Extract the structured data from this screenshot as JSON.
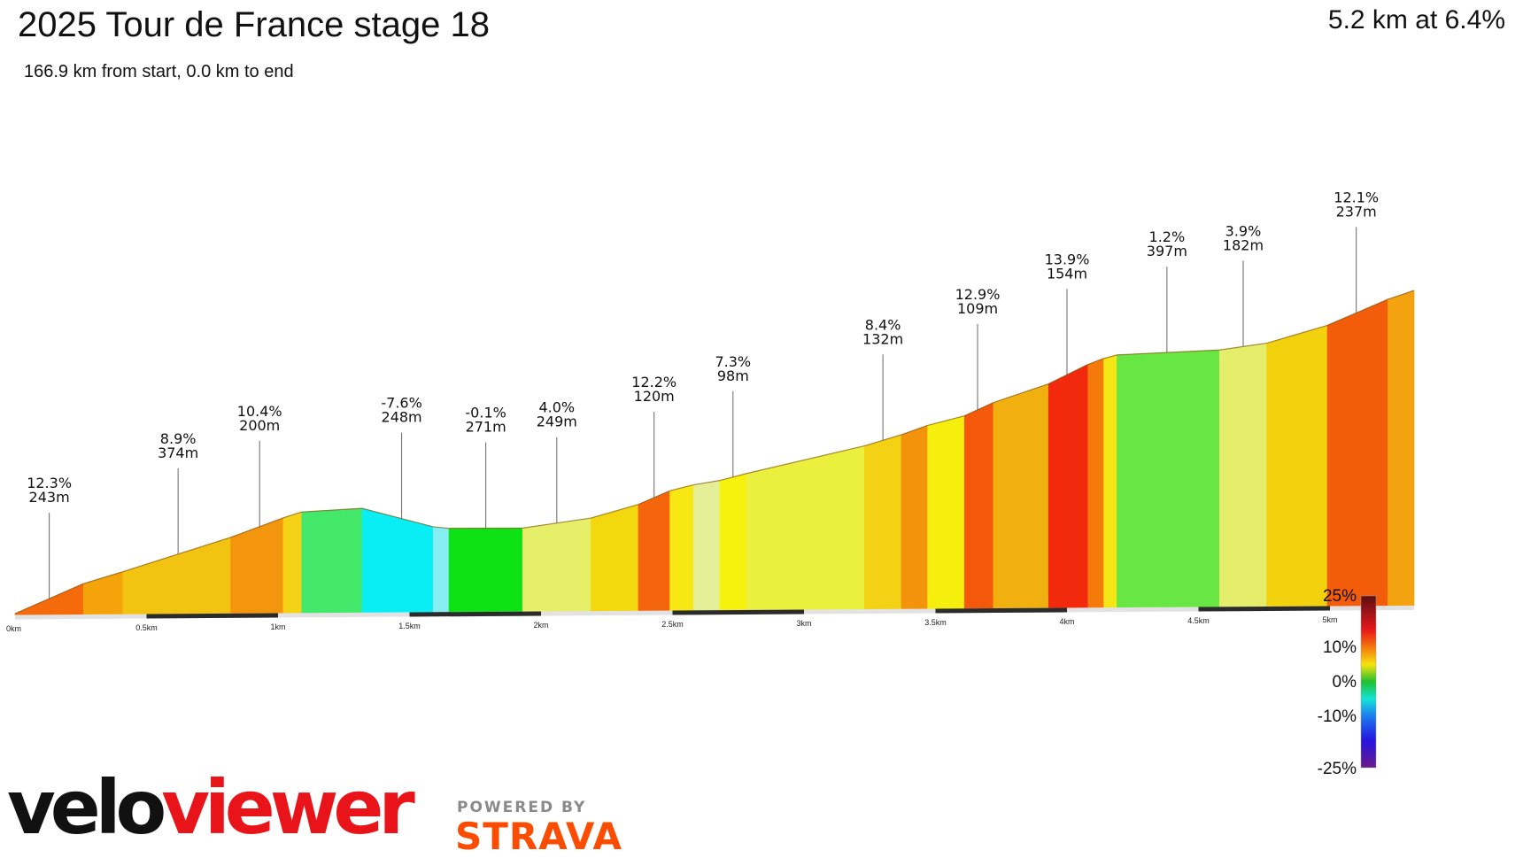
{
  "header": {
    "title": "2025 Tour de France stage 18",
    "subtitle": "166.9 km from start, 0.0 km to end",
    "summary": "5.2 km at 6.4%"
  },
  "branding": {
    "logo_part1": "velo",
    "logo_part2": "viewer",
    "powered_by": "POWERED BY",
    "partner": "STRAVA"
  },
  "chart_data": {
    "type": "area",
    "title": "2025 Tour de France stage 18",
    "xlabel": "",
    "ylabel": "",
    "x_unit": "km",
    "xlim": [
      0,
      5.2
    ],
    "x_ticks": [
      "0km",
      "0.5km",
      "1km",
      "1.5km",
      "2km",
      "2.5km",
      "3km",
      "3.5km",
      "4km",
      "4.5km",
      "5km"
    ],
    "grid": false,
    "segments": [
      {
        "from": 0.0,
        "to": 0.26,
        "gradient": 12.3,
        "length_label": "243m",
        "color": "#f56a0a"
      },
      {
        "from": 0.26,
        "to": 0.41,
        "gradient": 8.5,
        "length_label": "",
        "color": "#f4a30b"
      },
      {
        "from": 0.41,
        "to": 0.82,
        "gradient": 8.9,
        "length_label": "374m",
        "color": "#f2c311"
      },
      {
        "from": 0.82,
        "to": 1.02,
        "gradient": 10.4,
        "length_label": "200m",
        "color": "#f4960d"
      },
      {
        "from": 1.02,
        "to": 1.09,
        "gradient": 9.0,
        "length_label": "",
        "color": "#f4d316"
      },
      {
        "from": 1.09,
        "to": 1.32,
        "gradient": 1.5,
        "length_label": "",
        "color": "#44e86a"
      },
      {
        "from": 1.32,
        "to": 1.59,
        "gradient": -7.6,
        "length_label": "248m",
        "color": "#08eef4"
      },
      {
        "from": 1.59,
        "to": 1.65,
        "gradient": -3.0,
        "length_label": "",
        "color": "#86eef2"
      },
      {
        "from": 1.65,
        "to": 1.93,
        "gradient": -0.1,
        "length_label": "271m",
        "color": "#0de214"
      },
      {
        "from": 1.93,
        "to": 2.19,
        "gradient": 4.0,
        "length_label": "249m",
        "color": "#e6ef6a"
      },
      {
        "from": 2.19,
        "to": 2.37,
        "gradient": 8.0,
        "length_label": "",
        "color": "#f3d80f"
      },
      {
        "from": 2.37,
        "to": 2.49,
        "gradient": 12.2,
        "length_label": "120m",
        "color": "#f5650c"
      },
      {
        "from": 2.49,
        "to": 2.58,
        "gradient": 7.0,
        "length_label": "",
        "color": "#f7e712"
      },
      {
        "from": 2.58,
        "to": 2.68,
        "gradient": 4.5,
        "length_label": "",
        "color": "#e4ee96"
      },
      {
        "from": 2.68,
        "to": 2.78,
        "gradient": 7.3,
        "length_label": "98m",
        "color": "#f6f20b"
      },
      {
        "from": 2.78,
        "to": 3.23,
        "gradient": 6.5,
        "length_label": "",
        "color": "#ebf03e"
      },
      {
        "from": 3.23,
        "to": 3.37,
        "gradient": 8.4,
        "length_label": "132m",
        "color": "#f3d215"
      },
      {
        "from": 3.37,
        "to": 3.47,
        "gradient": 10.0,
        "length_label": "",
        "color": "#f3930c"
      },
      {
        "from": 3.47,
        "to": 3.61,
        "gradient": 7.2,
        "length_label": "",
        "color": "#f6ee0c"
      },
      {
        "from": 3.61,
        "to": 3.72,
        "gradient": 12.9,
        "length_label": "109m",
        "color": "#f4590b"
      },
      {
        "from": 3.72,
        "to": 3.93,
        "gradient": 9.5,
        "length_label": "",
        "color": "#f2b010"
      },
      {
        "from": 3.93,
        "to": 4.08,
        "gradient": 13.9,
        "length_label": "154m",
        "color": "#f2290c"
      },
      {
        "from": 4.08,
        "to": 4.14,
        "gradient": 10.5,
        "length_label": "",
        "color": "#f47a0b"
      },
      {
        "from": 4.14,
        "to": 4.19,
        "gradient": 7.5,
        "length_label": "",
        "color": "#f5e715"
      },
      {
        "from": 4.19,
        "to": 4.58,
        "gradient": 1.2,
        "length_label": "397m",
        "color": "#68e644"
      },
      {
        "from": 4.58,
        "to": 4.76,
        "gradient": 3.9,
        "length_label": "182m",
        "color": "#e4ee6b"
      },
      {
        "from": 4.76,
        "to": 4.99,
        "gradient": 8.2,
        "length_label": "",
        "color": "#f2d10d"
      },
      {
        "from": 4.99,
        "to": 5.22,
        "gradient": 12.1,
        "length_label": "237m",
        "color": "#f25c0b"
      },
      {
        "from": 5.22,
        "to": 5.32,
        "gradient": 9.5,
        "length_label": "",
        "color": "#f3a30f"
      }
    ],
    "callouts": [
      {
        "x": 0.13,
        "gradient": "12.3%",
        "length": "243m"
      },
      {
        "x": 0.62,
        "gradient": "8.9%",
        "length": "374m"
      },
      {
        "x": 0.93,
        "gradient": "10.4%",
        "length": "200m"
      },
      {
        "x": 1.47,
        "gradient": "-7.6%",
        "length": "248m"
      },
      {
        "x": 1.79,
        "gradient": "-0.1%",
        "length": "271m"
      },
      {
        "x": 2.06,
        "gradient": "4.0%",
        "length": "249m"
      },
      {
        "x": 2.43,
        "gradient": "12.2%",
        "length": "120m"
      },
      {
        "x": 2.73,
        "gradient": "7.3%",
        "length": "98m"
      },
      {
        "x": 3.3,
        "gradient": "8.4%",
        "length": "132m"
      },
      {
        "x": 3.66,
        "gradient": "12.9%",
        "length": "109m"
      },
      {
        "x": 4.0,
        "gradient": "13.9%",
        "length": "154m"
      },
      {
        "x": 4.38,
        "gradient": "1.2%",
        "length": "397m"
      },
      {
        "x": 4.67,
        "gradient": "3.9%",
        "length": "182m"
      },
      {
        "x": 5.1,
        "gradient": "12.1%",
        "length": "237m"
      }
    ],
    "color_scale": {
      "labels": [
        "25%",
        "10%",
        "0%",
        "-10%",
        "-25%"
      ],
      "stops": [
        {
          "value": 25,
          "color": "#5a0f12"
        },
        {
          "value": 15,
          "color": "#e8181b"
        },
        {
          "value": 10,
          "color": "#f47a0b"
        },
        {
          "value": 5,
          "color": "#f6e30e"
        },
        {
          "value": 0,
          "color": "#20c030"
        },
        {
          "value": -5,
          "color": "#14e4d8"
        },
        {
          "value": -10,
          "color": "#1c7cf0"
        },
        {
          "value": -17,
          "color": "#2414e0"
        },
        {
          "value": -25,
          "color": "#6a1a8c"
        }
      ]
    }
  }
}
